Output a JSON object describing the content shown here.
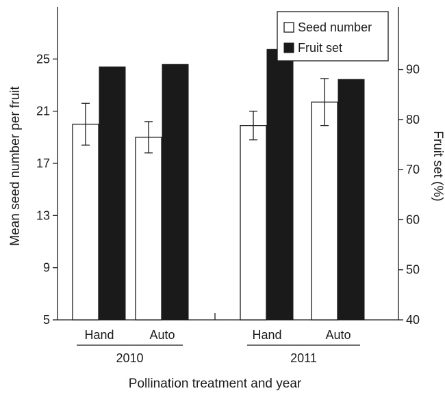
{
  "chart_data": {
    "type": "bar",
    "xlabel": "Pollination treatment and year",
    "ylabel_left": "Mean seed number per fruit",
    "ylabel_right": "Fruit set (%)",
    "ylim_left": [
      5,
      29
    ],
    "ylim_right": [
      40,
      102.5
    ],
    "yticks_left": [
      5,
      9,
      13,
      17,
      21,
      25
    ],
    "yticks_right": [
      40,
      50,
      60,
      70,
      80,
      90
    ],
    "groups": [
      {
        "year": "2010",
        "categories": [
          "Hand",
          "Auto"
        ]
      },
      {
        "year": "2011",
        "categories": [
          "Hand",
          "Auto"
        ]
      }
    ],
    "categories": [
      "Hand",
      "Auto",
      "Hand",
      "Auto"
    ],
    "series": [
      {
        "name": "Seed number",
        "axis": "left",
        "color": "#ffffff",
        "values": [
          20.0,
          19.0,
          19.9,
          21.7
        ],
        "error": [
          1.6,
          1.2,
          1.1,
          1.8
        ]
      },
      {
        "name": "Fruit set",
        "axis": "right",
        "color": "#1a1a1a",
        "values": [
          90.5,
          91.0,
          94.0,
          88.0
        ]
      }
    ],
    "legend_position": "top-right",
    "grid": false
  }
}
